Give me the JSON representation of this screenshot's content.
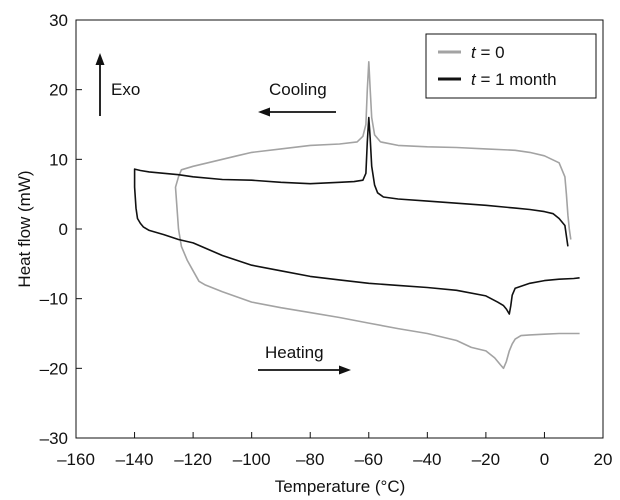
{
  "chart_data": {
    "type": "line",
    "xlabel": "Temperature (°C)",
    "ylabel": "Heat flow (mW)",
    "xlim": [
      -160,
      20
    ],
    "ylim": [
      -30,
      30
    ],
    "xticks": [
      -160,
      -140,
      -120,
      -100,
      -80,
      -60,
      -40,
      -20,
      0,
      20
    ],
    "xtick_labels": [
      "–160",
      "–140",
      "–120",
      "–100",
      "–80",
      "–60",
      "–40",
      "–20",
      "0",
      "20"
    ],
    "yticks": [
      -30,
      -20,
      -10,
      0,
      10,
      20,
      30
    ],
    "ytick_labels": [
      "–30",
      "–20",
      "–10",
      "0",
      "10",
      "20",
      "30"
    ],
    "grid": false,
    "legend_position": "top-right",
    "legend": [
      {
        "var": "t",
        "rest": " = 0",
        "color": "#a3a3a3"
      },
      {
        "var": "t",
        "rest": " = 1 month",
        "color": "#111111"
      }
    ],
    "annotations": {
      "exo": "Exo",
      "cooling": "Cooling",
      "heating": "Heating"
    },
    "series": [
      {
        "color": "#a3a3a3",
        "x": [
          9,
          8.5,
          8,
          7.5,
          7,
          5,
          0,
          -5,
          -10,
          -20,
          -30,
          -40,
          -50,
          -56,
          -58,
          -59,
          -59.5,
          -60,
          -60.5,
          -61,
          -62,
          -64,
          -70,
          -80,
          -90,
          -100,
          -105,
          -110,
          -115,
          -120,
          -124,
          -125,
          -126,
          -125.5,
          -125,
          -124,
          -122,
          -120,
          -118,
          -116,
          -113,
          -110,
          -100,
          -90,
          -80,
          -70,
          -60,
          -50,
          -40,
          -30,
          -25,
          -20,
          -17,
          -15,
          -14,
          -13,
          -12,
          -11,
          -10,
          -8,
          -5,
          0,
          5,
          10,
          12
        ],
        "y": [
          -1.5,
          0,
          2,
          5,
          7.5,
          9.5,
          10.5,
          11,
          11.3,
          11.5,
          11.7,
          11.8,
          12,
          12.5,
          13.5,
          16,
          20,
          24,
          20,
          15,
          13.3,
          12.5,
          12.2,
          12,
          11.5,
          11,
          10.5,
          10,
          9.5,
          9,
          8.5,
          7.5,
          6,
          3,
          0,
          -2.5,
          -4.5,
          -6,
          -7.5,
          -8,
          -8.5,
          -9,
          -10.5,
          -11.3,
          -12,
          -12.7,
          -13.5,
          -14.3,
          -15,
          -16,
          -17,
          -17.5,
          -18.5,
          -19.5,
          -20,
          -19,
          -17.5,
          -16.5,
          -15.8,
          -15.3,
          -15.2,
          -15.1,
          -15,
          -15,
          -15
        ]
      },
      {
        "color": "#111111",
        "x": [
          8,
          7.5,
          7,
          5,
          3,
          0,
          -5,
          -10,
          -20,
          -30,
          -40,
          -50,
          -55,
          -57,
          -58,
          -59,
          -59.5,
          -60,
          -60.5,
          -61,
          -62,
          -65,
          -70,
          -80,
          -90,
          -100,
          -110,
          -120,
          -125,
          -130,
          -135,
          -138,
          -140,
          -140,
          -139.5,
          -139,
          -138,
          -137,
          -135,
          -130,
          -125,
          -120,
          -110,
          -100,
          -90,
          -80,
          -70,
          -60,
          -50,
          -40,
          -30,
          -20,
          -16,
          -14,
          -13,
          -12,
          -11.5,
          -11,
          -10,
          -5,
          0,
          5,
          10,
          12
        ],
        "y": [
          -2.5,
          -1,
          0.5,
          1.5,
          2.2,
          2.5,
          2.8,
          3,
          3.4,
          3.7,
          4,
          4.3,
          4.6,
          5.2,
          6.3,
          9,
          13,
          16,
          12.5,
          8,
          7,
          6.8,
          6.7,
          6.5,
          6.7,
          7,
          7.1,
          7.5,
          7.8,
          8,
          8.2,
          8.4,
          8.6,
          6,
          3,
          1.5,
          0.8,
          0.3,
          -0.2,
          -0.8,
          -1.5,
          -2,
          -3.8,
          -5.2,
          -6,
          -6.8,
          -7.3,
          -7.8,
          -8.1,
          -8.4,
          -8.8,
          -9.6,
          -10.5,
          -11,
          -11.5,
          -12.2,
          -11,
          -9.5,
          -8.5,
          -7.8,
          -7.4,
          -7.2,
          -7.1,
          -7
        ]
      }
    ]
  }
}
